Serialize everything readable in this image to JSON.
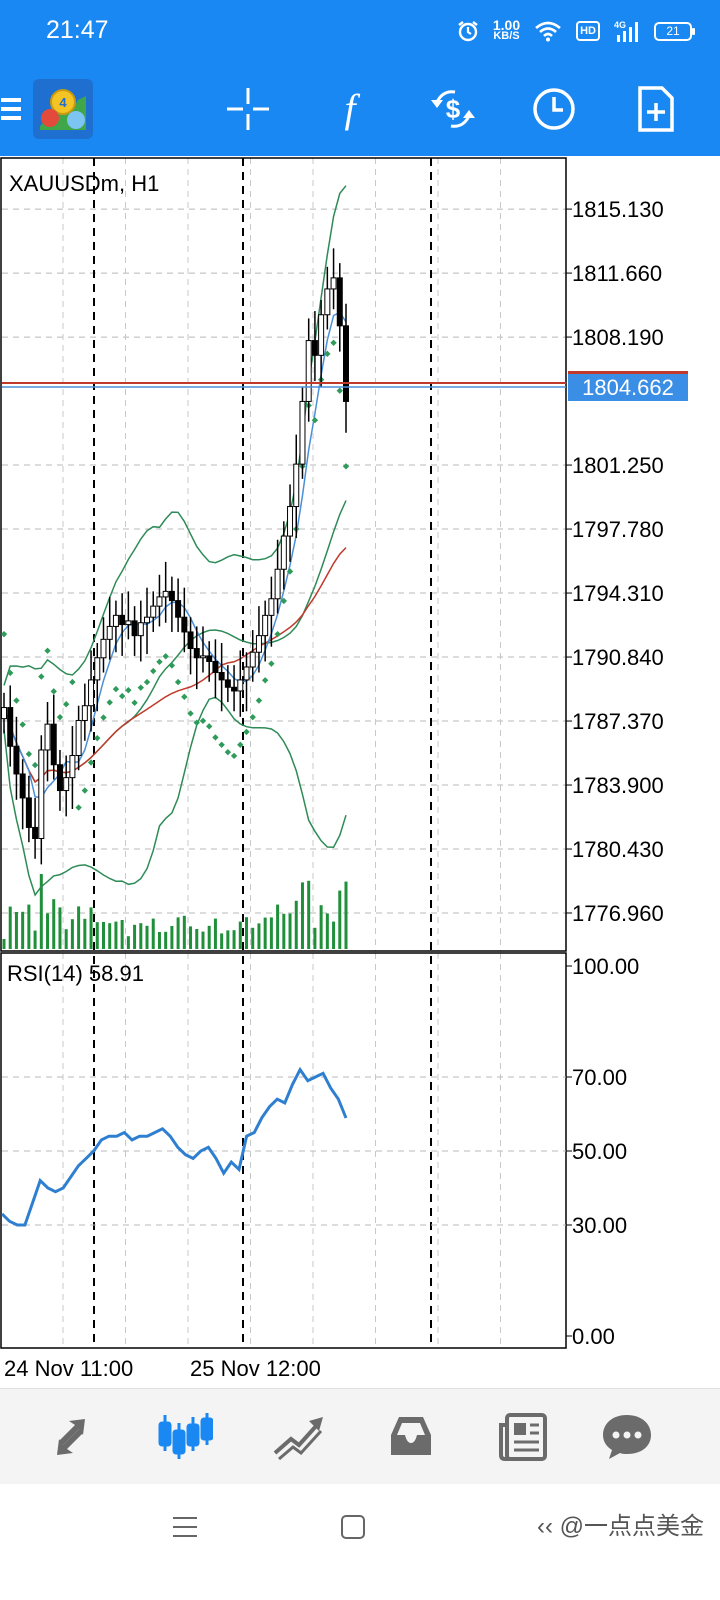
{
  "status_bar": {
    "time": "21:47",
    "net_speed_value": "1.00",
    "net_speed_unit": "KB/S",
    "hd_label": "HD",
    "signal_label": "4G",
    "battery": "21",
    "icons": [
      "alarm-icon",
      "wifi-icon",
      "signal-icon",
      "battery-icon"
    ]
  },
  "toolbar": {
    "icons": [
      "menu-icon",
      "metatrader-logo",
      "crosshair-icon",
      "indicators-icon",
      "symbol-change-icon",
      "timeframe-icon",
      "new-order-icon"
    ],
    "indicator_glyph": "f"
  },
  "chart": {
    "symbol_label": "XAUUSDm, H1",
    "current_price": "1804.662",
    "price_ticks": [
      "1815.130",
      "1811.660",
      "1808.190",
      "1801.250",
      "1797.780",
      "1794.310",
      "1790.840",
      "1787.370",
      "1783.900",
      "1780.430",
      "1776.960"
    ],
    "rsi_label": "RSI(14) 58.91",
    "rsi_ticks": [
      "100.00",
      "70.00",
      "50.00",
      "30.00",
      "0.00"
    ],
    "time_labels": [
      "24 Nov 11:00",
      "25 Nov 12:00"
    ],
    "colors": {
      "bull_candle": "#ffffff",
      "bear_candle": "#000000",
      "bollinger": "#2e8b57",
      "ma_red": "#c0392b",
      "ma_blue": "#4a90d9",
      "psar": "#2e9b5a",
      "volume": "#1f8f3a",
      "rsi_line": "#2f7fd1",
      "price_tag": "#3a8ee6",
      "bid_line": "#c0392b"
    }
  },
  "chart_data": {
    "type": "candlestick",
    "symbol": "XAUUSDm",
    "timeframe": "H1",
    "ylim": [
      1774.9,
      1817.9
    ],
    "close_last": 1804.662,
    "closes": [
      1788.1,
      1786.0,
      1784.5,
      1783.2,
      1781.6,
      1781.0,
      1785.8,
      1787.2,
      1785.0,
      1783.6,
      1784.3,
      1785.5,
      1787.4,
      1788.2,
      1789.6,
      1790.8,
      1791.8,
      1792.5,
      1793.1,
      1792.6,
      1792.8,
      1792.0,
      1792.7,
      1793.0,
      1793.6,
      1794.1,
      1794.4,
      1793.9,
      1793.0,
      1792.2,
      1791.3,
      1790.8,
      1790.9,
      1790.6,
      1790.0,
      1789.6,
      1789.2,
      1789.0,
      1789.6,
      1790.3,
      1791.1,
      1792.0,
      1793.1,
      1794.0,
      1795.6,
      1797.4,
      1799.0,
      1801.3,
      1804.7,
      1808.0,
      1807.2,
      1809.4,
      1810.8,
      1811.4,
      1808.8,
      1804.7
    ],
    "rsi": {
      "ylim": [
        0,
        100
      ],
      "values": [
        33,
        31,
        30,
        30,
        36,
        42,
        40,
        39,
        40,
        43,
        46,
        48,
        50,
        53,
        54,
        54,
        55,
        53,
        54,
        54,
        55,
        56,
        54,
        51,
        49,
        48,
        50,
        51,
        48,
        44,
        47,
        45,
        54,
        55,
        59,
        62,
        64,
        63,
        68,
        72,
        69,
        70,
        71,
        67,
        64,
        58.91
      ]
    }
  },
  "bottom_nav": {
    "items": [
      "quotes-icon",
      "chart-icon",
      "trade-icon",
      "history-icon",
      "news-icon",
      "messages-icon"
    ],
    "active_index": 1
  },
  "system_nav": {
    "watermark": "‹‹ @一点点美金"
  }
}
